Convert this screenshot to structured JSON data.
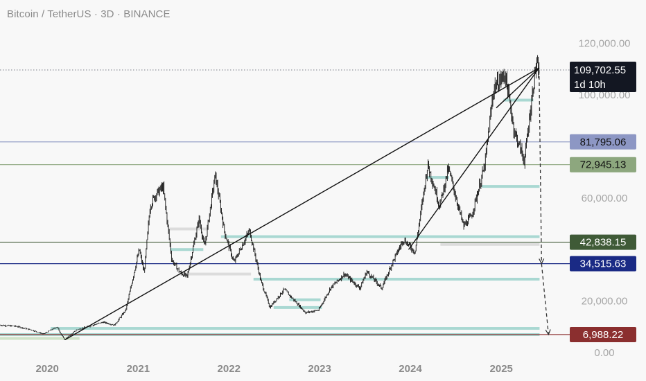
{
  "header": {
    "title": "Bitcoin / TetherUS · 3D · BINANCE"
  },
  "colors": {
    "background": "#f8f8f8",
    "candles": "#111111",
    "axis_text": "#a6a6a6",
    "level_blue_light": "#8d97c4",
    "level_green_light": "#8da77e",
    "level_green_dark": "#3f5a37",
    "level_blue_dark": "#1a2a85",
    "level_red": "#8b2f2f",
    "price_tag_bg": "#131722",
    "box_teal": "#a9d8d2",
    "box_gray": "#dcdcdc"
  },
  "chart_data": {
    "type": "line",
    "style": "candlestick",
    "symbol": "Bitcoin / TetherUS",
    "interval": "3D",
    "exchange": "BINANCE",
    "x_ticks": [
      "2020",
      "2021",
      "2022",
      "2023",
      "2024",
      "2025"
    ],
    "y_ticks": [
      "120,000.00",
      "100,000.00",
      "60,000.00",
      "20,000.00",
      "0.00"
    ],
    "y_tick_values": [
      120000,
      100000,
      60000,
      20000,
      0
    ],
    "ylim": [
      0,
      128000
    ],
    "xlim": [
      "2019-06-25",
      "2025-12-15"
    ],
    "current_price": {
      "label": "109,702.55",
      "value": 109702.55,
      "countdown": "1d 10h"
    },
    "levels": [
      {
        "label": "81,795.06",
        "value": 81795.06,
        "color": "#8d97c4",
        "text_color": "#111111"
      },
      {
        "label": "72,945.13",
        "value": 72945.13,
        "color": "#8da77e",
        "text_color": "#111111"
      },
      {
        "label": "42,838.15",
        "value": 42838.15,
        "color": "#3f5a37",
        "text_color": "#ffffff"
      },
      {
        "label": "34,515.63",
        "value": 34515.63,
        "color": "#1a2a85",
        "text_color": "#ffffff"
      },
      {
        "label": "6,988.22",
        "value": 6988.22,
        "color": "#8b2f2f",
        "text_color": "#ffffff"
      }
    ],
    "price_path": [
      {
        "date": "2019-06-25",
        "price": 10700
      },
      {
        "date": "2019-09-01",
        "price": 10200
      },
      {
        "date": "2019-11-01",
        "price": 8800
      },
      {
        "date": "2019-12-20",
        "price": 7200
      },
      {
        "date": "2020-02-12",
        "price": 10000
      },
      {
        "date": "2020-03-13",
        "price": 5000
      },
      {
        "date": "2020-05-01",
        "price": 8800
      },
      {
        "date": "2020-08-15",
        "price": 11800
      },
      {
        "date": "2020-10-01",
        "price": 10700
      },
      {
        "date": "2020-11-15",
        "price": 16500
      },
      {
        "date": "2021-01-08",
        "price": 40000
      },
      {
        "date": "2021-01-28",
        "price": 31000
      },
      {
        "date": "2021-02-21",
        "price": 57000
      },
      {
        "date": "2021-03-13",
        "price": 61000
      },
      {
        "date": "2021-04-14",
        "price": 64500
      },
      {
        "date": "2021-05-19",
        "price": 36000
      },
      {
        "date": "2021-06-22",
        "price": 31000
      },
      {
        "date": "2021-07-20",
        "price": 29500
      },
      {
        "date": "2021-09-06",
        "price": 52000
      },
      {
        "date": "2021-09-28",
        "price": 41000
      },
      {
        "date": "2021-11-10",
        "price": 69000
      },
      {
        "date": "2021-12-18",
        "price": 46500
      },
      {
        "date": "2022-01-24",
        "price": 35000
      },
      {
        "date": "2022-03-28",
        "price": 47500
      },
      {
        "date": "2022-05-12",
        "price": 28000
      },
      {
        "date": "2022-06-18",
        "price": 17600
      },
      {
        "date": "2022-08-14",
        "price": 24500
      },
      {
        "date": "2022-11-09",
        "price": 15500
      },
      {
        "date": "2022-12-31",
        "price": 16500
      },
      {
        "date": "2023-02-16",
        "price": 25000
      },
      {
        "date": "2023-04-14",
        "price": 30500
      },
      {
        "date": "2023-06-15",
        "price": 25000
      },
      {
        "date": "2023-07-13",
        "price": 31500
      },
      {
        "date": "2023-09-11",
        "price": 25000
      },
      {
        "date": "2023-10-24",
        "price": 35000
      },
      {
        "date": "2023-12-08",
        "price": 44000
      },
      {
        "date": "2024-01-23",
        "price": 39000
      },
      {
        "date": "2024-03-14",
        "price": 73000
      },
      {
        "date": "2024-05-01",
        "price": 57000
      },
      {
        "date": "2024-06-05",
        "price": 71500
      },
      {
        "date": "2024-08-05",
        "price": 49000
      },
      {
        "date": "2024-09-06",
        "price": 53000
      },
      {
        "date": "2024-10-29",
        "price": 72500
      },
      {
        "date": "2024-12-05",
        "price": 103000
      },
      {
        "date": "2025-01-20",
        "price": 108000
      },
      {
        "date": "2025-02-25",
        "price": 86000
      },
      {
        "date": "2025-04-07",
        "price": 74500
      },
      {
        "date": "2025-05-22",
        "price": 111000
      },
      {
        "date": "2025-06-04",
        "price": 109702.55
      }
    ],
    "trendlines": [
      {
        "from": {
          "date": "2020-03-13",
          "price": 5000
        },
        "to": {
          "date": "2025-06-02",
          "price": 110500
        }
      },
      {
        "from": {
          "date": "2023-12-25",
          "price": 40000
        },
        "to": {
          "date": "2025-06-02",
          "price": 110500
        }
      },
      {
        "from": {
          "date": "2024-12-12",
          "price": 95000
        },
        "to": {
          "date": "2025-06-02",
          "price": 110500
        }
      }
    ],
    "projection_arrows": [
      {
        "from": {
          "date": "2025-06-02",
          "price": 109702.55
        },
        "to": {
          "date": "2025-06-12",
          "price": 34515.63
        }
      },
      {
        "from": {
          "date": "2025-06-12",
          "price": 34515.63
        },
        "to": {
          "date": "2025-07-10",
          "price": 6988.22
        }
      }
    ],
    "zones": [
      {
        "start": "2019-06-25",
        "end": "2025-06-04",
        "price": 6988.22,
        "color": "teal"
      },
      {
        "start": "2020-01-15",
        "end": "2025-06-04",
        "price": 9400,
        "color": "teal"
      },
      {
        "start": "2022-04-10",
        "end": "2025-06-04",
        "price": 28500,
        "color": "teal"
      },
      {
        "start": "2021-11-30",
        "end": "2025-06-04",
        "price": 45000,
        "color": "teal"
      },
      {
        "start": "2024-10-15",
        "end": "2025-06-04",
        "price": 64500,
        "color": "teal"
      },
      {
        "start": "2024-05-01",
        "end": "2025-06-04",
        "price": 42000,
        "color": "gray"
      },
      {
        "start": "2021-06-15",
        "end": "2022-03-31",
        "price": 30500,
        "color": "gray"
      },
      {
        "start": "2021-05-01",
        "end": "2021-10-10",
        "price": 48000,
        "color": "gray"
      },
      {
        "start": "2021-05-10",
        "end": "2021-09-20",
        "price": 40000,
        "color": "teal"
      },
      {
        "start": "2022-06-30",
        "end": "2023-01-10",
        "price": 17500,
        "color": "teal"
      },
      {
        "start": "2022-09-01",
        "end": "2023-01-05",
        "price": 20500,
        "color": "teal"
      },
      {
        "start": "2025-01-10",
        "end": "2025-05-10",
        "price": 98000,
        "color": "teal"
      },
      {
        "start": "2024-03-05",
        "end": "2024-06-05",
        "price": 68000,
        "color": "teal"
      },
      {
        "start": "2019-06-25",
        "end": "2020-05-10",
        "price": 5500,
        "color": "green"
      }
    ],
    "grid": false,
    "legend": "none"
  }
}
